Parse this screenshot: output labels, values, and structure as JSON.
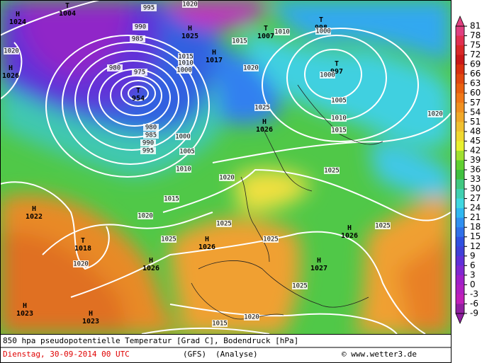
{
  "caption": {
    "line1": "850 hpa pseudopotentielle Temperatur [Grad C], Bodendruck [hPa]",
    "date": "Dienstag, 30-09-2014  00 UTC",
    "model": "(GFS)",
    "run": "(Analyse)",
    "credit": "© www.wetter3.de"
  },
  "colorbar": {
    "labels": [
      81,
      78,
      75,
      72,
      69,
      66,
      63,
      60,
      57,
      54,
      51,
      48,
      45,
      42,
      39,
      36,
      33,
      30,
      27,
      24,
      21,
      18,
      15,
      12,
      9,
      6,
      3,
      0,
      -3,
      -6,
      -9
    ],
    "colors": [
      "#e04080",
      "#e03050",
      "#d82828",
      "#c81818",
      "#d83010",
      "#e04810",
      "#e86010",
      "#f07818",
      "#f09020",
      "#f0a828",
      "#f0c030",
      "#f0d830",
      "#e8f030",
      "#a0e030",
      "#60d030",
      "#40c040",
      "#40c880",
      "#40d0b0",
      "#40d8e0",
      "#30b8f0",
      "#3090f0",
      "#3070e8",
      "#3050e0",
      "#4040d8",
      "#6030d8",
      "#8028d0",
      "#a020c8",
      "#b020c0",
      "#c020b8",
      "#9020a0"
    ]
  },
  "map": {
    "centers": [
      {
        "symbol": "T",
        "pressure": "1004"
      },
      {
        "symbol": "H",
        "pressure": "1024"
      },
      {
        "symbol": "H",
        "pressure": "1026"
      },
      {
        "symbol": "H",
        "pressure": "1025"
      },
      {
        "symbol": "T",
        "pressure": "1007"
      },
      {
        "symbol": "T",
        "pressure": "998"
      },
      {
        "symbol": "H",
        "pressure": "1017"
      },
      {
        "symbol": "T",
        "pressure": "997"
      },
      {
        "symbol": "T",
        "pressure": "954"
      },
      {
        "symbol": "H",
        "pressure": "1026"
      },
      {
        "symbol": "H",
        "pressure": "1022"
      },
      {
        "symbol": "T",
        "pressure": "1018"
      },
      {
        "symbol": "H",
        "pressure": "1026"
      },
      {
        "symbol": "H",
        "pressure": "1026"
      },
      {
        "symbol": "H",
        "pressure": "1026"
      },
      {
        "symbol": "H",
        "pressure": "1027"
      },
      {
        "symbol": "H",
        "pressure": "1023"
      },
      {
        "symbol": "H",
        "pressure": "1023"
      }
    ],
    "isobar_labels": [
      "995",
      "990",
      "985",
      "980",
      "975",
      "1020",
      "1015",
      "1010",
      "1000",
      "1025",
      "1015",
      "1000",
      "1005",
      "1010",
      "1015",
      "1020",
      "1020",
      "980",
      "985",
      "990",
      "995",
      "1000",
      "1005",
      "1010",
      "1015",
      "1020",
      "1020",
      "1025",
      "1025",
      "1025",
      "1025",
      "1025",
      "1020",
      "1020",
      "1015",
      "1025",
      "1020",
      "1010",
      "1000"
    ]
  }
}
